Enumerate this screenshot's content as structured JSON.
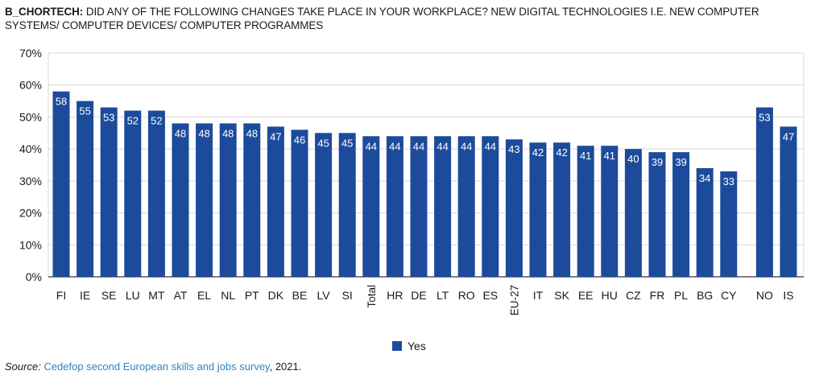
{
  "title": {
    "prefix": "B_CHORTECH:",
    "text": "DID ANY OF THE FOLLOWING CHANGES TAKE PLACE IN YOUR WORKPLACE? NEW DIGITAL TECHNOLOGIES I.E. NEW COMPUTER SYSTEMS/ COMPUTER DEVICES/ COMPUTER PROGRAMMES"
  },
  "source": {
    "label": "Source:",
    "link_text": "Cedefop second European skills and jobs survey",
    "suffix": ", 2021."
  },
  "chart_data": {
    "type": "bar",
    "categories": [
      "FI",
      "IE",
      "SE",
      "LU",
      "MT",
      "AT",
      "EL",
      "NL",
      "PT",
      "DK",
      "BE",
      "LV",
      "SI",
      "Total",
      "HR",
      "DE",
      "LT",
      "RO",
      "ES",
      "EU-27",
      "IT",
      "SK",
      "EE",
      "HU",
      "CZ",
      "FR",
      "PL",
      "BG",
      "CY",
      "NO",
      "IS"
    ],
    "series": [
      {
        "name": "Yes",
        "values": [
          58,
          55,
          53,
          52,
          52,
          48,
          48,
          48,
          48,
          47,
          46,
          45,
          45,
          44,
          44,
          44,
          44,
          44,
          44,
          43,
          42,
          42,
          41,
          41,
          40,
          39,
          39,
          34,
          33,
          53,
          47
        ]
      }
    ],
    "ylim": [
      0,
      70
    ],
    "yticks": [
      "0%",
      "10%",
      "20%",
      "30%",
      "40%",
      "50%",
      "60%",
      "70%"
    ],
    "grid": true,
    "legend": "bottom-center",
    "bar_color": "#1c4b9c",
    "rotated_labels": [
      "Total",
      "EU-27"
    ]
  }
}
